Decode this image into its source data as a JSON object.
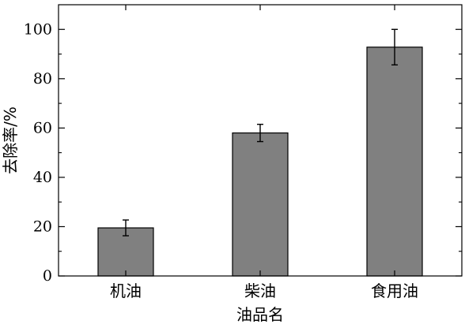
{
  "chart_data": {
    "type": "bar",
    "title": "",
    "xlabel": "油品名",
    "ylabel": "去除率/%",
    "categories": [
      "机油",
      "柴油",
      "食用油"
    ],
    "values": [
      19.5,
      58.0,
      92.8
    ],
    "error": [
      3.2,
      3.5,
      7.2
    ],
    "ylim": [
      0,
      110
    ],
    "yticks": [
      0,
      20,
      40,
      60,
      80,
      100
    ],
    "grid": false,
    "legend": "none",
    "bar_color": "#808080",
    "bar_edge_color": "#000000"
  }
}
